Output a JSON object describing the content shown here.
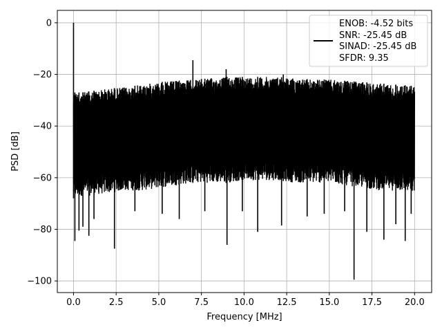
{
  "chart_data": {
    "type": "line",
    "title": "",
    "xlabel": "Frequency [MHz]",
    "ylabel": "PSD [dB]",
    "xlim": [
      -0.95,
      21.0
    ],
    "ylim": [
      -104.5,
      4.8
    ],
    "x_ticks": [
      0.0,
      2.5,
      5.0,
      7.5,
      10.0,
      12.5,
      15.0,
      17.5,
      20.0
    ],
    "x_tick_labels": [
      "0.0",
      "2.5",
      "5.0",
      "7.5",
      "10.0",
      "12.5",
      "15.0",
      "17.5",
      "20.0"
    ],
    "y_ticks": [
      0,
      -20,
      -40,
      -60,
      -80,
      -100
    ],
    "y_tick_labels": [
      "0",
      "−20",
      "−40",
      "−60",
      "−80",
      "−100"
    ],
    "grid": true,
    "line_color": "#000000",
    "legend": {
      "placement": "top-right",
      "entries": [
        "ENOB: -4.52 bits",
        "SNR: -25.45 dB",
        "SINAD: -25.45 dB",
        "SFDR: 9.35"
      ]
    },
    "series": [
      {
        "description_free": true,
        "upper_envelope": {
          "x": [
            0.0,
            0.5,
            1.0,
            2.0,
            3.0,
            4.0,
            5.0,
            6.0,
            7.0,
            8.0,
            9.0,
            10.0,
            11.0,
            12.0,
            13.0,
            14.0,
            15.0,
            16.0,
            17.0,
            18.0,
            19.0,
            20.0
          ],
          "y": [
            -27,
            -27,
            -26.5,
            -25.5,
            -25,
            -24,
            -23,
            -22.5,
            -22,
            -21.5,
            -21,
            -21,
            -21,
            -21,
            -21.5,
            -22,
            -22,
            -22.5,
            -23,
            -23.5,
            -24,
            -24.5
          ]
        },
        "lower_envelope": {
          "x": [
            0.0,
            0.5,
            1.0,
            2.0,
            3.0,
            4.0,
            5.0,
            6.0,
            7.0,
            8.0,
            9.0,
            10.0,
            11.0,
            12.0,
            13.0,
            14.0,
            15.0,
            16.0,
            17.0,
            18.0,
            19.0,
            20.0
          ],
          "y": [
            -68,
            -67,
            -67,
            -66,
            -65,
            -65,
            -64,
            -63,
            -62,
            -62,
            -62,
            -61,
            -61,
            -61,
            -62,
            -62,
            -62,
            -63,
            -64,
            -65,
            -65,
            -66
          ]
        },
        "peaks": [
          {
            "x": 0.0,
            "y": 0
          },
          {
            "x": 7.0,
            "y": -14.5
          },
          {
            "x": 8.95,
            "y": -18
          },
          {
            "x": 12.3,
            "y": -20
          }
        ],
        "dips": [
          {
            "x": 0.08,
            "y": -84.5
          },
          {
            "x": 0.32,
            "y": -80.5
          },
          {
            "x": 0.55,
            "y": -79
          },
          {
            "x": 0.9,
            "y": -82.5
          },
          {
            "x": 1.2,
            "y": -76
          },
          {
            "x": 2.4,
            "y": -87.5
          },
          {
            "x": 3.6,
            "y": -73
          },
          {
            "x": 5.2,
            "y": -74
          },
          {
            "x": 6.2,
            "y": -76
          },
          {
            "x": 7.7,
            "y": -73
          },
          {
            "x": 9.0,
            "y": -86
          },
          {
            "x": 9.9,
            "y": -73
          },
          {
            "x": 10.8,
            "y": -81
          },
          {
            "x": 12.2,
            "y": -78.5
          },
          {
            "x": 13.7,
            "y": -75
          },
          {
            "x": 14.7,
            "y": -74
          },
          {
            "x": 15.9,
            "y": -73
          },
          {
            "x": 16.45,
            "y": -99.5
          },
          {
            "x": 17.2,
            "y": -81
          },
          {
            "x": 18.2,
            "y": -84
          },
          {
            "x": 18.9,
            "y": -78
          },
          {
            "x": 19.45,
            "y": -84.5
          },
          {
            "x": 19.8,
            "y": -74
          }
        ]
      }
    ]
  }
}
